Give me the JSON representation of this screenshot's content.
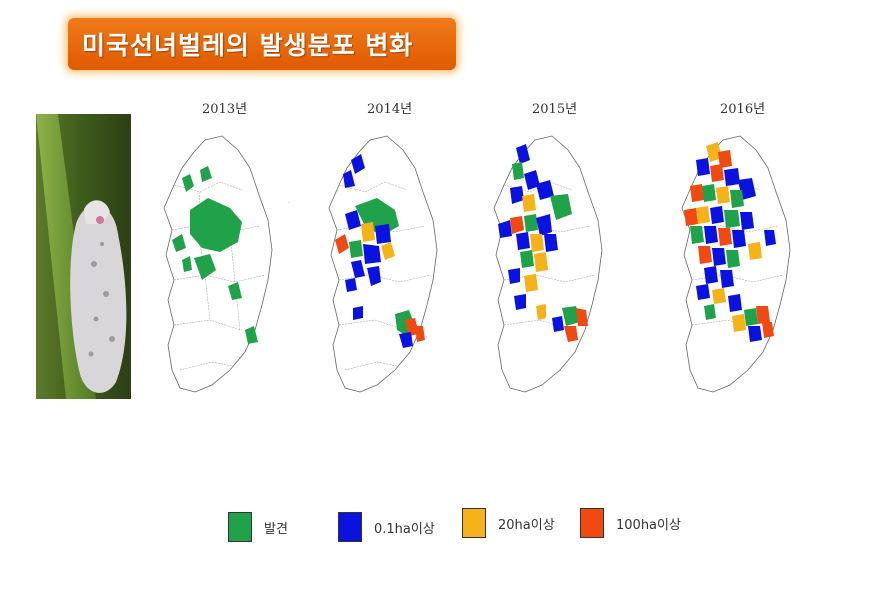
{
  "title": "미국선녀벌레의 발생분포 변화",
  "colors": {
    "banner": "#e8660a",
    "discovered": "#1fa24a",
    "over_0_1ha": "#0a12e0",
    "over_20ha": "#f5b21a",
    "over_100ha": "#f04a12"
  },
  "maps": [
    {
      "year": "2013년"
    },
    {
      "year": "2014년"
    },
    {
      "year": "2015년"
    },
    {
      "year": "2016년"
    }
  ],
  "legend": [
    {
      "label": "발견",
      "color": "#1fa24a"
    },
    {
      "label": "0.1ha이상",
      "color": "#0a12e0"
    },
    {
      "label": "20ha이상",
      "color": "#f5b21a"
    },
    {
      "label": "100ha이상",
      "color": "#f04a12"
    }
  ]
}
